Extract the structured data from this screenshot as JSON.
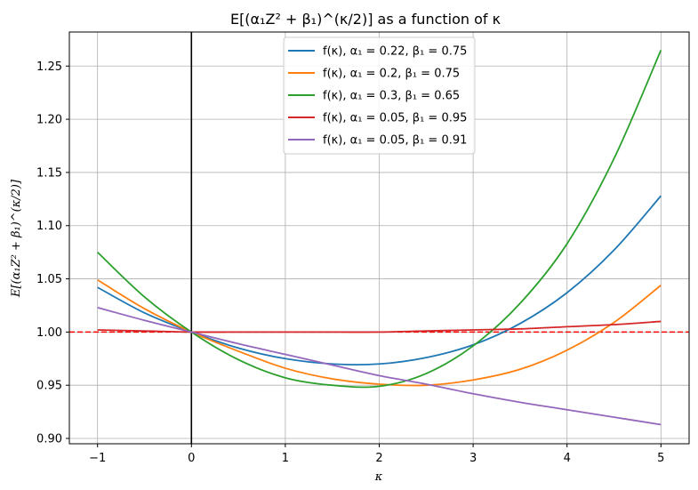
{
  "chart_data": {
    "type": "line",
    "title": "E[(α₁Z² + β₁)^(κ/2)] as a function of κ",
    "xlabel": "κ",
    "ylabel": "E[(α₁Z² + β₁)^(κ/2)]",
    "xlim": [
      -1.3,
      5.3
    ],
    "ylim": [
      0.895,
      1.282
    ],
    "xticks": [
      -1,
      0,
      1,
      2,
      3,
      4,
      5
    ],
    "xtick_labels": [
      "−1",
      "0",
      "1",
      "2",
      "3",
      "4",
      "5"
    ],
    "yticks": [
      0.9,
      0.95,
      1.0,
      1.05,
      1.1,
      1.15,
      1.2,
      1.25
    ],
    "ytick_labels": [
      "0.90",
      "0.95",
      "1.00",
      "1.05",
      "1.10",
      "1.15",
      "1.20",
      "1.25"
    ],
    "grid": true,
    "legend_position": "top-center",
    "reference_lines": [
      {
        "orientation": "horizontal",
        "value": 1.0,
        "color": "#ff0000",
        "style": "dashed"
      },
      {
        "orientation": "vertical",
        "value": 0,
        "color": "#000000",
        "style": "solid"
      }
    ],
    "x": [
      -1,
      -0.5,
      0,
      0.5,
      1,
      1.5,
      2,
      2.5,
      3,
      3.5,
      4,
      4.5,
      5
    ],
    "series": [
      {
        "name": "f(κ), α₁ = 0.22, β₁ = 0.75",
        "color": "#1f77b4",
        "values": [
          1.042,
          1.018,
          1.0,
          0.985,
          0.975,
          0.97,
          0.97,
          0.976,
          0.988,
          1.008,
          1.037,
          1.077,
          1.128
        ]
      },
      {
        "name": "f(κ), α₁ = 0.2, β₁ = 0.75",
        "color": "#ff7f0e",
        "values": [
          1.049,
          1.022,
          1.0,
          0.982,
          0.966,
          0.956,
          0.951,
          0.95,
          0.955,
          0.965,
          0.983,
          1.009,
          1.044
        ]
      },
      {
        "name": "f(κ), α₁ = 0.3, β₁ = 0.65",
        "color": "#2ca02c",
        "values": [
          1.075,
          1.033,
          1.0,
          0.974,
          0.957,
          0.95,
          0.949,
          0.961,
          0.987,
          1.027,
          1.083,
          1.163,
          1.265
        ]
      },
      {
        "name": "f(κ), α₁ = 0.05, β₁ = 0.95",
        "color": "#d62728",
        "values": [
          1.002,
          1.001,
          1.0,
          1.0,
          1.0,
          1.0,
          1.0,
          1.001,
          1.002,
          1.003,
          1.005,
          1.007,
          1.01
        ]
      },
      {
        "name": "f(κ), α₁ = 0.05, β₁ = 0.91",
        "color": "#9467bd",
        "values": [
          1.023,
          1.011,
          1.0,
          0.989,
          0.979,
          0.969,
          0.959,
          0.951,
          0.942,
          0.934,
          0.927,
          0.92,
          0.913
        ]
      }
    ]
  }
}
